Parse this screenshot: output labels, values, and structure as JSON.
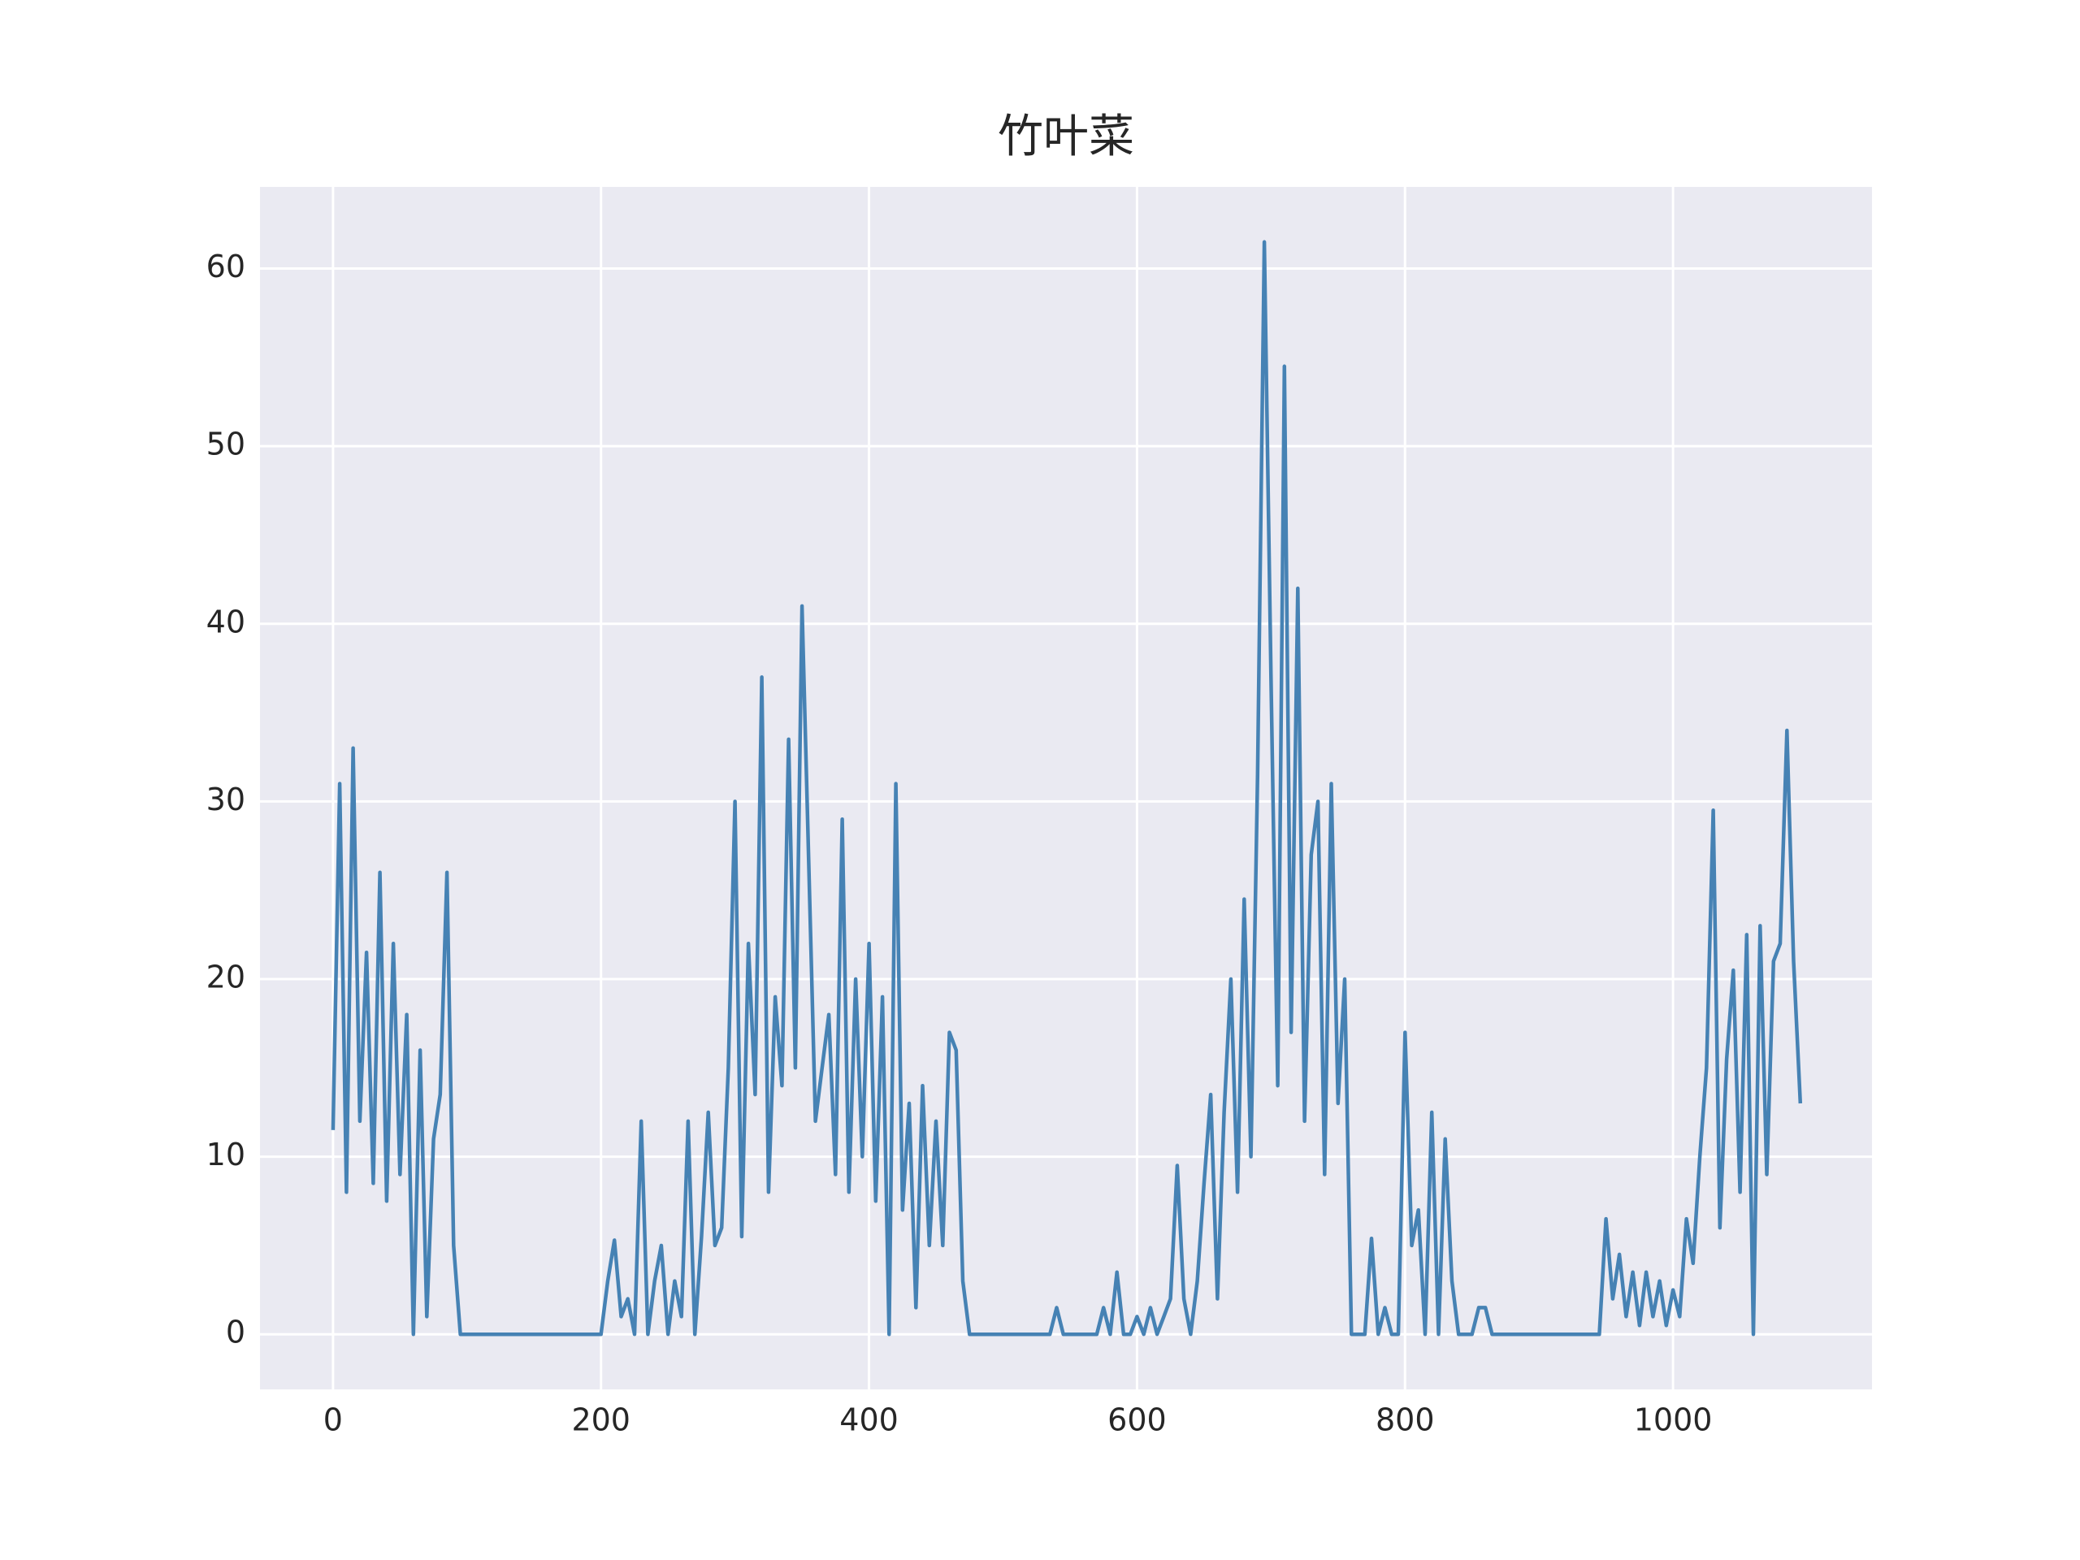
{
  "chart_data": {
    "type": "line",
    "title": "竹叶菜",
    "x": [
      0,
      5,
      10,
      15,
      20,
      25,
      30,
      35,
      40,
      45,
      50,
      55,
      60,
      65,
      70,
      75,
      80,
      85,
      90,
      95,
      100,
      105,
      110,
      115,
      120,
      125,
      130,
      135,
      140,
      145,
      150,
      155,
      160,
      165,
      170,
      175,
      180,
      185,
      190,
      195,
      200,
      205,
      210,
      215,
      220,
      225,
      230,
      235,
      240,
      245,
      250,
      255,
      260,
      265,
      270,
      275,
      280,
      285,
      290,
      295,
      300,
      305,
      310,
      315,
      320,
      325,
      330,
      335,
      340,
      345,
      350,
      355,
      360,
      365,
      370,
      375,
      380,
      385,
      390,
      395,
      400,
      405,
      410,
      415,
      420,
      425,
      430,
      435,
      440,
      445,
      450,
      455,
      460,
      465,
      470,
      475,
      480,
      485,
      490,
      495,
      500,
      505,
      510,
      515,
      520,
      525,
      530,
      535,
      540,
      545,
      550,
      555,
      560,
      565,
      570,
      575,
      580,
      585,
      590,
      595,
      600,
      605,
      610,
      615,
      620,
      625,
      630,
      635,
      640,
      645,
      650,
      655,
      660,
      665,
      670,
      675,
      680,
      685,
      690,
      695,
      700,
      705,
      710,
      715,
      720,
      725,
      730,
      735,
      740,
      745,
      750,
      755,
      760,
      765,
      770,
      775,
      780,
      785,
      790,
      795,
      800,
      805,
      810,
      815,
      820,
      825,
      830,
      835,
      840,
      845,
      850,
      855,
      860,
      865,
      870,
      875,
      880,
      885,
      890,
      895,
      900,
      905,
      910,
      915,
      920,
      925,
      930,
      935,
      940,
      945,
      950,
      955,
      960,
      965,
      970,
      975,
      980,
      985,
      990,
      995,
      1000,
      1005,
      1010,
      1015,
      1020,
      1025,
      1030,
      1035,
      1040,
      1045,
      1050,
      1055,
      1060,
      1065,
      1070,
      1075,
      1080,
      1085,
      1090,
      1095
    ],
    "series": [
      {
        "color": "#4682b4",
        "values": [
          11.5,
          31,
          8,
          33,
          12,
          21.5,
          8.5,
          26,
          7.5,
          22,
          9,
          18,
          0,
          16,
          1,
          11,
          13.5,
          26,
          5,
          0,
          0,
          0,
          0,
          0,
          0,
          0,
          0,
          0,
          0,
          0,
          0,
          0,
          0,
          0,
          0,
          0,
          0,
          0,
          0,
          0,
          0,
          3,
          5.3,
          1,
          2,
          0,
          12,
          0,
          3,
          5,
          0,
          3,
          1,
          12,
          0,
          5.5,
          12.5,
          5,
          6,
          15,
          30,
          5.5,
          22,
          13.5,
          37,
          8,
          19,
          14,
          33.5,
          15,
          41,
          26.5,
          12,
          15,
          18,
          9,
          29,
          8,
          20,
          10,
          22,
          7.5,
          19,
          0,
          31,
          7,
          13,
          1.5,
          14,
          5,
          12,
          5,
          17,
          16,
          3,
          0,
          0,
          0,
          0,
          0,
          0,
          0,
          0,
          0,
          0,
          0,
          0,
          0,
          1.5,
          0,
          0,
          0,
          0,
          0,
          0,
          1.5,
          0,
          3.5,
          0,
          0,
          1,
          0,
          1.5,
          0,
          1,
          2,
          9.5,
          2,
          0,
          3,
          8.5,
          13.5,
          2,
          12.5,
          20,
          8,
          24.5,
          10,
          31.5,
          61.5,
          37,
          14,
          54.5,
          17,
          42,
          12,
          27,
          30,
          9,
          31,
          13,
          20,
          0,
          0,
          0,
          5.4,
          0,
          1.5,
          0,
          0,
          17,
          5,
          7,
          0,
          12.5,
          0,
          11,
          3,
          0,
          0,
          0,
          1.5,
          1.5,
          0,
          0,
          0,
          0,
          0,
          0,
          0,
          0,
          0,
          0,
          0,
          0,
          0,
          0,
          0,
          0,
          0,
          6.5,
          2,
          4.5,
          1,
          3.5,
          0.5,
          3.5,
          1,
          3,
          0.5,
          2.5,
          1,
          6.5,
          4,
          10,
          15,
          29.5,
          6,
          15.5,
          20.5,
          8,
          22.5,
          0,
          23,
          9,
          21,
          22,
          34,
          21,
          13
        ]
      }
    ],
    "xlim": [
      -54.5,
      1148.5
    ],
    "ylim": [
      -3.1,
      64.6
    ],
    "xticks": [
      0,
      200,
      400,
      600,
      800,
      1000
    ],
    "yticks": [
      0,
      10,
      20,
      30,
      40,
      50,
      60
    ],
    "grid": true
  }
}
